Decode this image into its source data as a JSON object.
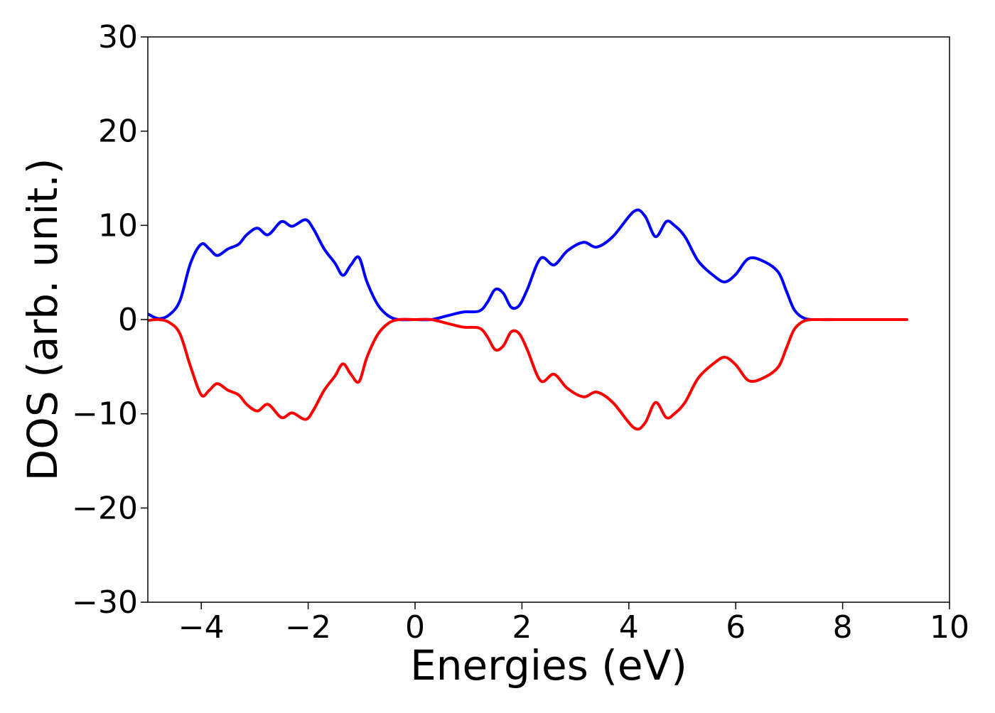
{
  "chart_data": {
    "type": "line",
    "title": "",
    "xlabel": "Energies (eV)",
    "ylabel": "DOS (arb. unit.)",
    "xlim": [
      -5,
      10
    ],
    "ylim": [
      -30,
      30
    ],
    "xticks": [
      -4,
      -2,
      0,
      2,
      4,
      6,
      8,
      10
    ],
    "yticks": [
      -30,
      -20,
      -10,
      0,
      10,
      20,
      30
    ],
    "xtick_labels": [
      "−4",
      "−2",
      "0",
      "2",
      "4",
      "6",
      "8",
      "10"
    ],
    "ytick_labels": [
      "−30",
      "−20",
      "−10",
      "0",
      "10",
      "20",
      "30"
    ],
    "grid": false,
    "legend": "none",
    "colors": {
      "spin_up": "#0000ff",
      "spin_down": "#ff0000",
      "axes": "#000000",
      "background": "#ffffff"
    },
    "series": [
      {
        "color": "#0000ff",
        "x": [
          -5.0,
          -4.8,
          -4.6,
          -4.4,
          -4.2,
          -4.0,
          -3.85,
          -3.7,
          -3.5,
          -3.3,
          -3.15,
          -2.95,
          -2.75,
          -2.5,
          -2.3,
          -2.05,
          -1.9,
          -1.7,
          -1.5,
          -1.35,
          -1.2,
          -1.05,
          -0.9,
          -0.7,
          -0.5,
          -0.3,
          0.0,
          0.3,
          0.6,
          0.9,
          1.2,
          1.35,
          1.5,
          1.65,
          1.8,
          1.95,
          2.1,
          2.35,
          2.6,
          2.85,
          3.15,
          3.4,
          3.7,
          4.1,
          4.3,
          4.5,
          4.7,
          4.85,
          5.05,
          5.3,
          5.6,
          5.8,
          6.0,
          6.25,
          6.55,
          6.8,
          6.95,
          7.1,
          7.3,
          7.6,
          8.0,
          8.5,
          9.2
        ],
        "values": [
          0.6,
          0.1,
          0.5,
          2.0,
          6.0,
          8.0,
          7.5,
          6.8,
          7.5,
          8.0,
          9.0,
          9.7,
          9.0,
          10.4,
          9.9,
          10.6,
          9.6,
          7.5,
          6.0,
          4.7,
          5.8,
          6.6,
          4.0,
          1.6,
          0.4,
          0.0,
          0.0,
          0.0,
          0.4,
          0.8,
          0.9,
          1.8,
          3.2,
          2.8,
          1.3,
          1.5,
          3.2,
          6.5,
          5.8,
          7.3,
          8.2,
          7.7,
          8.8,
          11.5,
          11.0,
          8.8,
          10.4,
          10.0,
          8.8,
          6.2,
          4.6,
          4.0,
          4.8,
          6.5,
          6.1,
          5.0,
          3.0,
          1.0,
          0.1,
          0.0,
          0.0,
          0.0,
          0.0
        ]
      },
      {
        "color": "#ff0000",
        "x": [
          -5.0,
          -4.8,
          -4.6,
          -4.4,
          -4.2,
          -4.0,
          -3.85,
          -3.7,
          -3.5,
          -3.3,
          -3.15,
          -2.95,
          -2.75,
          -2.5,
          -2.3,
          -2.05,
          -1.9,
          -1.7,
          -1.5,
          -1.35,
          -1.2,
          -1.05,
          -0.9,
          -0.7,
          -0.5,
          -0.3,
          0.0,
          0.3,
          0.6,
          0.9,
          1.2,
          1.35,
          1.5,
          1.65,
          1.8,
          1.95,
          2.1,
          2.35,
          2.6,
          2.85,
          3.15,
          3.4,
          3.7,
          4.1,
          4.3,
          4.5,
          4.7,
          4.85,
          5.05,
          5.3,
          5.6,
          5.8,
          6.0,
          6.25,
          6.55,
          6.8,
          6.95,
          7.1,
          7.3,
          7.6,
          8.0,
          8.5,
          9.2
        ],
        "values": [
          -0.1,
          0.0,
          -0.3,
          -1.5,
          -5.0,
          -8.0,
          -7.5,
          -6.8,
          -7.5,
          -8.0,
          -9.0,
          -9.7,
          -9.0,
          -10.4,
          -9.9,
          -10.6,
          -9.6,
          -7.5,
          -6.0,
          -4.7,
          -5.8,
          -6.6,
          -4.0,
          -1.6,
          -0.4,
          0.0,
          0.0,
          0.0,
          -0.4,
          -0.8,
          -0.9,
          -1.8,
          -3.2,
          -2.8,
          -1.3,
          -1.5,
          -3.2,
          -6.5,
          -5.8,
          -7.3,
          -8.2,
          -7.7,
          -8.8,
          -11.5,
          -11.0,
          -8.8,
          -10.4,
          -10.0,
          -8.8,
          -6.2,
          -4.6,
          -4.0,
          -4.8,
          -6.5,
          -6.1,
          -5.0,
          -3.0,
          -1.0,
          -0.1,
          0.0,
          0.0,
          0.0,
          0.0
        ]
      }
    ]
  }
}
